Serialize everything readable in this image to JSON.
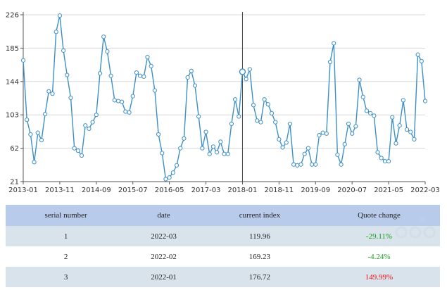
{
  "chart_data": {
    "type": "line",
    "x_tick_labels": [
      "2013-01",
      "2013-11",
      "2014-09",
      "2015-07",
      "2016-05",
      "2017-03",
      "2018-01",
      "2018-11",
      "2019-09",
      "2020-07",
      "2021-05",
      "2022-03"
    ],
    "y_tick_labels": [
      "21",
      "62",
      "103",
      "144",
      "185",
      "226"
    ],
    "ylim": [
      21,
      226
    ],
    "xlim": [
      "2013-01",
      "2022-03"
    ],
    "grid": "horizontal",
    "line_color": "#3d8fc7",
    "crosshair_x": "2018-01",
    "x": [
      "2013-01",
      "2013-02",
      "2013-03",
      "2013-04",
      "2013-05",
      "2013-06",
      "2013-07",
      "2013-08",
      "2013-09",
      "2013-10",
      "2013-11",
      "2013-12",
      "2014-01",
      "2014-02",
      "2014-03",
      "2014-04",
      "2014-05",
      "2014-06",
      "2014-07",
      "2014-08",
      "2014-09",
      "2014-10",
      "2014-11",
      "2014-12",
      "2015-01",
      "2015-02",
      "2015-03",
      "2015-04",
      "2015-05",
      "2015-06",
      "2015-07",
      "2015-08",
      "2015-09",
      "2015-10",
      "2015-11",
      "2015-12",
      "2016-01",
      "2016-02",
      "2016-03",
      "2016-04",
      "2016-05",
      "2016-06",
      "2016-07",
      "2016-08",
      "2016-09",
      "2016-10",
      "2016-11",
      "2016-12",
      "2017-01",
      "2017-02",
      "2017-03",
      "2017-04",
      "2017-05",
      "2017-06",
      "2017-07",
      "2017-08",
      "2017-09",
      "2017-10",
      "2017-11",
      "2017-12",
      "2018-01",
      "2018-02",
      "2018-03",
      "2018-04",
      "2018-05",
      "2018-06",
      "2018-07",
      "2018-08",
      "2018-09",
      "2018-10",
      "2018-11",
      "2018-12",
      "2019-01",
      "2019-02",
      "2019-03",
      "2019-04",
      "2019-05",
      "2019-06",
      "2019-07",
      "2019-08",
      "2019-09",
      "2019-10",
      "2019-11",
      "2019-12",
      "2020-01",
      "2020-02",
      "2020-03",
      "2020-04",
      "2020-05",
      "2020-06",
      "2020-07",
      "2020-08",
      "2020-09",
      "2020-10",
      "2020-11",
      "2020-12",
      "2021-01",
      "2021-02",
      "2021-03",
      "2021-04",
      "2021-05",
      "2021-06",
      "2021-07",
      "2021-08",
      "2021-09",
      "2021-10",
      "2021-11",
      "2021-12",
      "2022-01",
      "2022-02",
      "2022-03"
    ],
    "values": [
      170,
      97,
      79,
      45,
      81,
      72,
      104,
      132,
      129,
      205,
      225,
      182,
      152,
      124,
      62,
      59,
      53,
      90,
      86,
      94,
      103,
      154,
      199,
      181,
      151,
      121,
      120,
      119,
      107,
      106,
      126,
      155,
      151,
      150,
      174,
      163,
      133,
      79,
      56,
      24,
      26,
      32,
      41,
      62,
      74,
      149,
      157,
      139,
      101,
      62,
      82,
      55,
      64,
      57,
      70,
      55,
      55,
      92,
      122,
      101,
      156,
      147,
      159,
      115,
      96,
      94,
      122,
      116,
      105,
      94,
      73,
      63,
      69,
      92,
      42,
      41,
      42,
      55,
      62,
      42,
      42,
      78,
      81,
      80,
      168,
      191,
      54,
      42,
      67,
      92,
      80,
      89,
      146,
      125,
      108,
      105,
      102,
      57,
      50,
      46,
      46,
      100,
      68,
      90,
      121,
      85,
      82,
      73,
      177,
      169,
      120
    ]
  },
  "table": {
    "headers": [
      "serial number",
      "date",
      "current index",
      "Quote change"
    ],
    "rows": [
      {
        "serial": "1",
        "date": "2022-03",
        "index": "119.96",
        "change": "-29.11%",
        "direction": "down"
      },
      {
        "serial": "2",
        "date": "2022-02",
        "index": "169.23",
        "change": "-4.24%",
        "direction": "down"
      },
      {
        "serial": "3",
        "date": "2022-01",
        "index": "176.72",
        "change": "149.99%",
        "direction": "up"
      }
    ]
  }
}
